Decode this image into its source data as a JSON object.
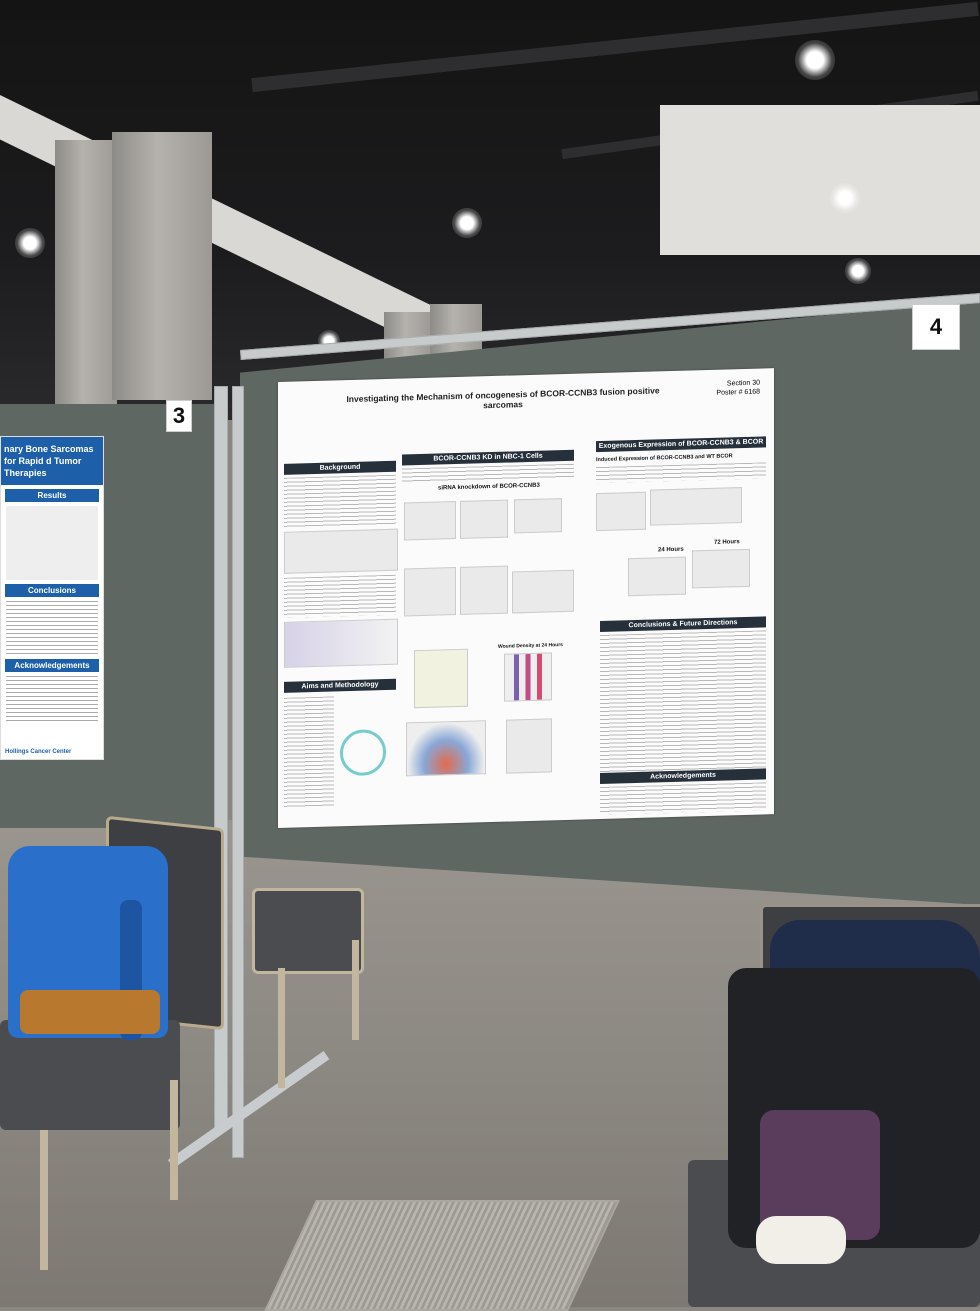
{
  "booth_numbers": {
    "left": "3",
    "right": "4"
  },
  "left_poster": {
    "title": "nary Bone Sarcomas for Rapid d Tumor Therapies",
    "sections": [
      "Results",
      "Conclusions",
      "Acknowledgements"
    ],
    "footer": "Hollings Cancer Center"
  },
  "main_poster": {
    "title": "Investigating the Mechanism of oncogenesis of BCOR-CCNB3 fusion positive sarcomas",
    "section_label": "Section 30",
    "poster_number": "Poster # 6168",
    "sections": {
      "background": "Background",
      "knockdown": "BCOR-CCNB3 KD in NBC-1 Cells",
      "exogenous": "Exogenous Expression of BCOR-CCNB3 & BCOR",
      "aims": "Aims and Methodology",
      "conclusions": "Conclusions & Future Directions",
      "acknowledgements": "Acknowledgements"
    },
    "subheadings": {
      "sirna": "siRNA knockdown of BCOR-CCNB3",
      "induced": "Induced Expression of BCOR-CCNB3 and WT BCOR",
      "h24": "24 Hours",
      "h72": "72 Hours",
      "wound": "Wound Density at 24 Hours"
    }
  },
  "colors": {
    "panel": "#5f6763",
    "section_bar": "#26303a",
    "left_poster_accent": "#1d5fa8",
    "blue_backpack": "#2a6fc9"
  }
}
